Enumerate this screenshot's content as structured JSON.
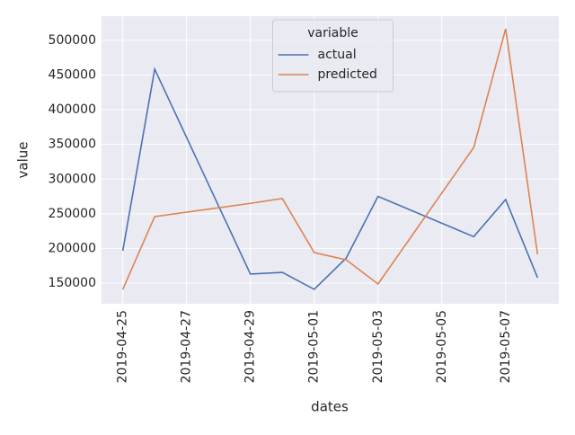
{
  "chart_data": {
    "type": "line",
    "xlabel": "dates",
    "ylabel": "value",
    "legend_title": "variable",
    "legend": "upper center",
    "grid": true,
    "x": [
      "2019-04-25",
      "2019-04-26",
      "2019-04-29",
      "2019-04-30",
      "2019-05-01",
      "2019-05-02",
      "2019-05-03",
      "2019-05-06",
      "2019-05-07",
      "2019-05-08"
    ],
    "series": [
      {
        "name": "actual",
        "color": "#4c72b0",
        "values": [
          196700,
          458500,
          163000,
          165500,
          141000,
          186000,
          275000,
          217000,
          270500,
          157800
        ]
      },
      {
        "name": "predicted",
        "color": "#dd8452",
        "values": [
          141000,
          246000,
          265000,
          272000,
          194000,
          183700,
          148700,
          345700,
          516800,
          191500
        ]
      }
    ],
    "xlim": [
      "2019-04-24T08:00",
      "2019-05-08T16:00"
    ],
    "xticks": [
      "2019-04-25",
      "2019-04-27",
      "2019-04-29",
      "2019-05-01",
      "2019-05-03",
      "2019-05-05",
      "2019-05-07"
    ],
    "ylim": [
      120200,
      534900
    ],
    "yticks": [
      150000,
      200000,
      250000,
      300000,
      350000,
      400000,
      450000,
      500000
    ]
  }
}
